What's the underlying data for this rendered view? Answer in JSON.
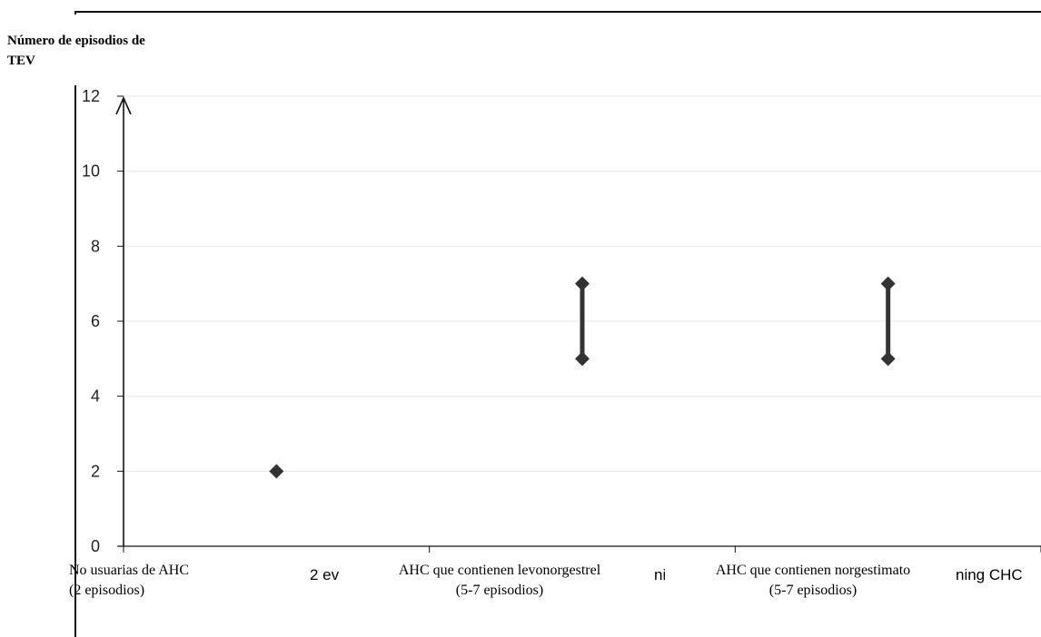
{
  "chart_data": {
    "type": "scatter",
    "title": "",
    "xlabel": "",
    "ylabel": "Número de episodios de\nTEV",
    "ylim": [
      0,
      12
    ],
    "yticks": [
      0,
      2,
      4,
      6,
      8,
      10,
      12
    ],
    "grid": true,
    "legend": "none",
    "categories": [
      "No usuarias de AHC\n(2 episodios)",
      "AHC que contienen levonorgestrel\n(5-7 episodios)",
      "AHC que contienen norgestimato\n(5-7 episodios)"
    ],
    "points": [
      {
        "category": "No usuarias de AHC\n(2 episodios)",
        "low": 2,
        "high": 2
      },
      {
        "category": "AHC que contienen levonorgestrel\n(5-7 episodios)",
        "low": 5,
        "high": 7
      },
      {
        "category": "AHC que contienen norgestimato\n(5-7 episodios)",
        "low": 5,
        "high": 7
      }
    ],
    "background_axis_labels": [
      "2 ev",
      "ni",
      "ning CHC"
    ],
    "colors": {
      "marker": "#333333",
      "grid": "#e6e6e6",
      "axis": "#111111",
      "tick_text": "#222222"
    }
  }
}
